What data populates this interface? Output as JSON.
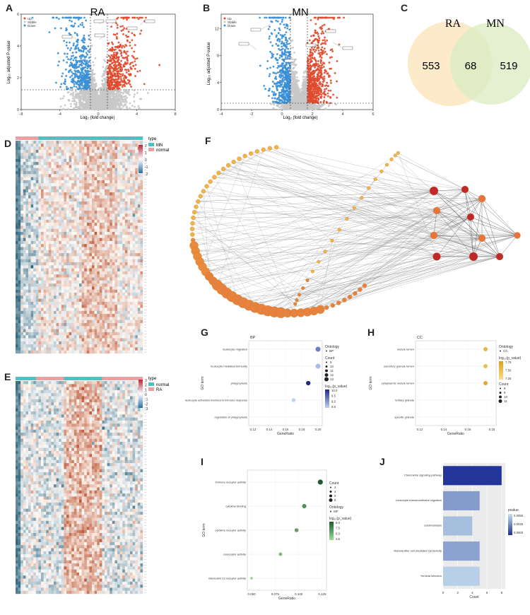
{
  "panels": {
    "A": {
      "letter": "A",
      "title": "RA",
      "xlabel": "Log₂ (fold change)",
      "ylabel": "Log₁₀ adjusted P-value",
      "xticks": [
        "-8",
        "-4",
        "0",
        "4",
        "8"
      ],
      "yticks": [
        "0",
        "2",
        "4",
        "6"
      ],
      "legend": [
        "Up",
        "Stable",
        "Down"
      ]
    },
    "B": {
      "letter": "B",
      "title": "MN",
      "xlabel": "Log₂ (fold change)",
      "ylabel": "Log₁₀ adjusted P-value",
      "xticks": [
        "-4",
        "-2",
        "0",
        "2",
        "4",
        "6"
      ],
      "yticks": [
        "0",
        "4",
        "8",
        "12"
      ],
      "legend": [
        "Up",
        "Stable",
        "Down"
      ]
    },
    "C": {
      "letter": "C",
      "left_label": "RA",
      "right_label": "MN",
      "left_only": "553",
      "overlap": "68",
      "right_only": "519"
    },
    "D": {
      "letter": "D",
      "legend_title": "type",
      "legend": [
        "MN",
        "normal"
      ],
      "scale_ticks": [
        "2",
        "1",
        "0",
        "-1",
        "-2"
      ]
    },
    "E": {
      "letter": "E",
      "legend_title": "type",
      "legend": [
        "normal",
        "RA"
      ],
      "scale_ticks": [
        "3",
        "2",
        "1",
        "0",
        "-1",
        "-2",
        "-3"
      ]
    },
    "F": {
      "letter": "F"
    },
    "G": {
      "letter": "G",
      "ontology_tag": "BP",
      "xlabel": "GeneRatio",
      "ylabel": "GO term",
      "terms": [
        "leukocyte migration",
        "leukocyte mediated immunity",
        "phagocytosis",
        "leukocyte activation involved in immune response",
        "regulation of phagocytosis"
      ],
      "xticks": [
        "0.12",
        "0.14",
        "0.16",
        "0.18",
        "0.20"
      ],
      "legend_ontology_title": "Ontology",
      "legend_ontology_item": "BP",
      "legend_count_title": "Count",
      "legend_count_items": [
        "9",
        "10",
        "11",
        "12",
        "13"
      ],
      "legend_color_title": "log₁₀(p_value)",
      "legend_color_ticks": [
        "10.0",
        "9.5",
        "9.0",
        "8.5"
      ]
    },
    "H": {
      "letter": "H",
      "ontology_tag": "CC",
      "xlabel": "GeneRatio",
      "ylabel": "GO term",
      "terms": [
        "vesicle lumen",
        "secretory granule lumen",
        "cytoplasmic vesicle lumen",
        "tertiary granule",
        "specific granule"
      ],
      "xticks": [
        "0.12",
        "0.14",
        "0.16",
        "0.18"
      ],
      "legend_ontology_title": "Ontology",
      "legend_ontology_item": "CC",
      "legend_color_title": "log₁₀(p_value)",
      "legend_color_ticks": [
        "7.75",
        "7.50",
        "7.25"
      ],
      "legend_count_title": "Count",
      "legend_count_items": [
        "8",
        "9",
        "10",
        "11"
      ]
    },
    "I": {
      "letter": "I",
      "xlabel": "GeneRatio",
      "ylabel": "GO term",
      "terms": [
        "immune receptor activity",
        "cytokine binding",
        "cytokine receptor activity",
        "coreceptor activity",
        "interleukin-12 receptor activity"
      ],
      "xticks": [
        "0.050",
        "0.075",
        "0.100",
        "0.125"
      ],
      "legend_count_title": "Count",
      "legend_count_items": [
        "2",
        "4",
        "6",
        "8"
      ],
      "legend_ontology_title": "Ontology",
      "legend_ontology_item": "MF",
      "legend_color_title": "log₁₀(p_value)",
      "legend_color_ticks": [
        "9.0",
        "7.5",
        "6.0",
        "4.5"
      ]
    },
    "J": {
      "letter": "J",
      "xlabel": "Count",
      "legend_title": "pvalue",
      "legend_ticks": [
        "0.0050",
        "0.0025",
        "0.0000"
      ],
      "xticks": [
        "0",
        "2",
        "4",
        "6",
        "8"
      ],
      "terms": [
        "Chemokine signaling pathway",
        "Leukocyte transendothelial migration",
        "Leishmaniasis",
        "Natural killer cell mediated cytotoxicity",
        "Yersinia infection"
      ]
    }
  },
  "colors": {
    "up": "#e04a2e",
    "down": "#3a8fd6",
    "stable": "#c8c8c8",
    "venn_left": "#fbe6bf",
    "venn_right": "#d9ecc2",
    "legend_mn": "#4ec0c0",
    "legend_normal": "#e8a0a0",
    "hub_dark": "#c0282c",
    "hub_orange": "#e8743a",
    "node_light": "#f0b34a"
  },
  "chart_data": [
    {
      "type": "scatter",
      "panel": "G",
      "categories": [
        "leukocyte migration",
        "leukocyte mediated immunity",
        "phagocytosis",
        "leukocyte activation involved in immune response",
        "regulation of phagocytosis"
      ],
      "x": [
        0.2,
        0.2,
        0.188,
        0.17,
        0.12
      ],
      "count": [
        13,
        13,
        12,
        11,
        9
      ],
      "neg_log_p": [
        9.2,
        8.6,
        10.0,
        8.4,
        8.4
      ],
      "xlim": [
        0.12,
        0.2
      ]
    },
    {
      "type": "scatter",
      "panel": "H",
      "categories": [
        "vesicle lumen",
        "secretory granule lumen",
        "cytoplasmic vesicle lumen",
        "tertiary granule",
        "specific granule"
      ],
      "x": [
        0.183,
        0.183,
        0.183,
        0.12,
        0.12
      ],
      "count": [
        11,
        11,
        11,
        8,
        8
      ],
      "neg_log_p": [
        7.45,
        7.4,
        7.55,
        7.2,
        7.2
      ],
      "xlim": [
        0.11,
        0.19
      ]
    },
    {
      "type": "scatter",
      "panel": "I",
      "categories": [
        "immune receptor activity",
        "cytokine binding",
        "cytokine receptor activity",
        "coreceptor activity",
        "interleukin-12 receptor activity"
      ],
      "x": [
        0.137,
        0.112,
        0.1,
        0.075,
        0.03
      ],
      "count": [
        8,
        6,
        5,
        4,
        2
      ],
      "neg_log_p": [
        9.0,
        7.2,
        6.6,
        5.6,
        4.5
      ],
      "xlim": [
        0.03,
        0.14
      ]
    },
    {
      "type": "bar",
      "panel": "J",
      "categories": [
        "Chemokine signaling pathway",
        "Leukocyte transendothelial migration",
        "Leishmaniasis",
        "Natural killer cell mediated cytotoxicity",
        "Yersinia infection"
      ],
      "values": [
        8,
        5,
        4,
        5,
        5
      ],
      "pvalue": [
        0.0001,
        0.003,
        0.004,
        0.0032,
        0.0045
      ],
      "xlim": [
        0,
        8.5
      ]
    }
  ]
}
